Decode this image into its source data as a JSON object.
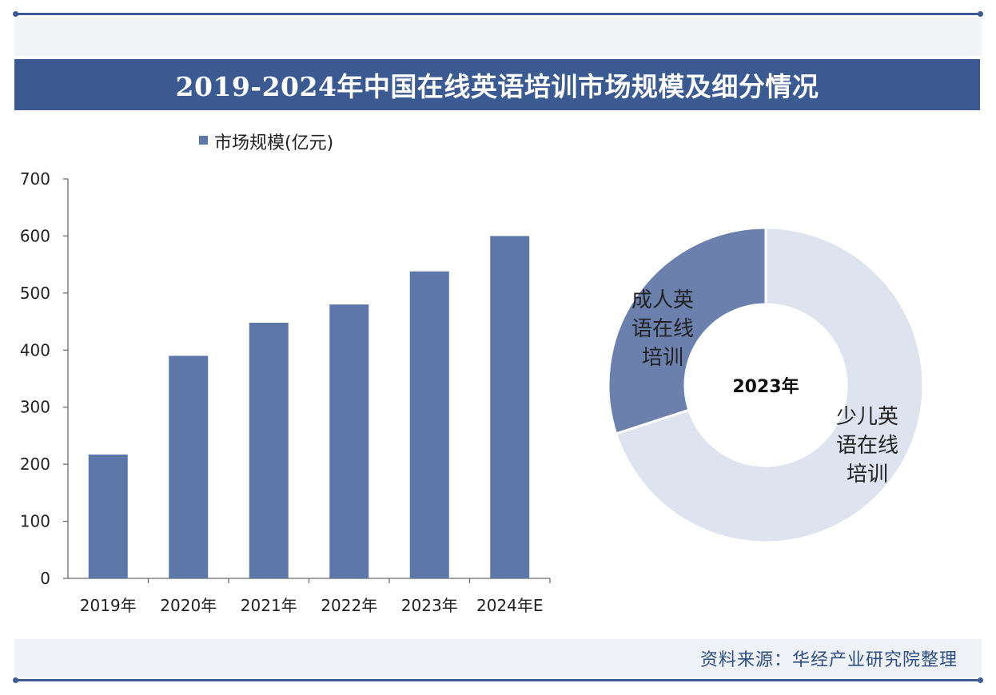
{
  "title": "2019-2024年中国在线英语培训市场规模及细分情况",
  "source": "资料来源：华经产业研究院整理",
  "colors": {
    "bar": "#5d77a8",
    "title_bg": "#3b5a92",
    "donut_adult": "#6b80ad",
    "donut_child": "#dde3ef"
  },
  "chart_data": [
    {
      "type": "bar",
      "legend": "市场规模(亿元)",
      "categories": [
        "2019年",
        "2020年",
        "2021年",
        "2022年",
        "2023年",
        "2024年E"
      ],
      "series": [
        {
          "name": "市场规模(亿元)",
          "values": [
            217,
            390,
            448,
            480,
            538,
            600
          ]
        }
      ],
      "yticks": [
        "0",
        "100",
        "200",
        "300",
        "400",
        "500",
        "600",
        "700"
      ],
      "ylim": [
        0,
        700
      ],
      "grid": false,
      "legend_position": "top-left"
    },
    {
      "type": "pie",
      "center_label": "2023年",
      "slices": [
        {
          "label": "成人英语在线培训",
          "label_lines": [
            "成人英",
            "语在线",
            "培训"
          ],
          "value": 30
        },
        {
          "label": "少儿英语在线培训",
          "label_lines": [
            "少儿英",
            "语在线",
            "培训"
          ],
          "value": 70
        }
      ]
    }
  ]
}
